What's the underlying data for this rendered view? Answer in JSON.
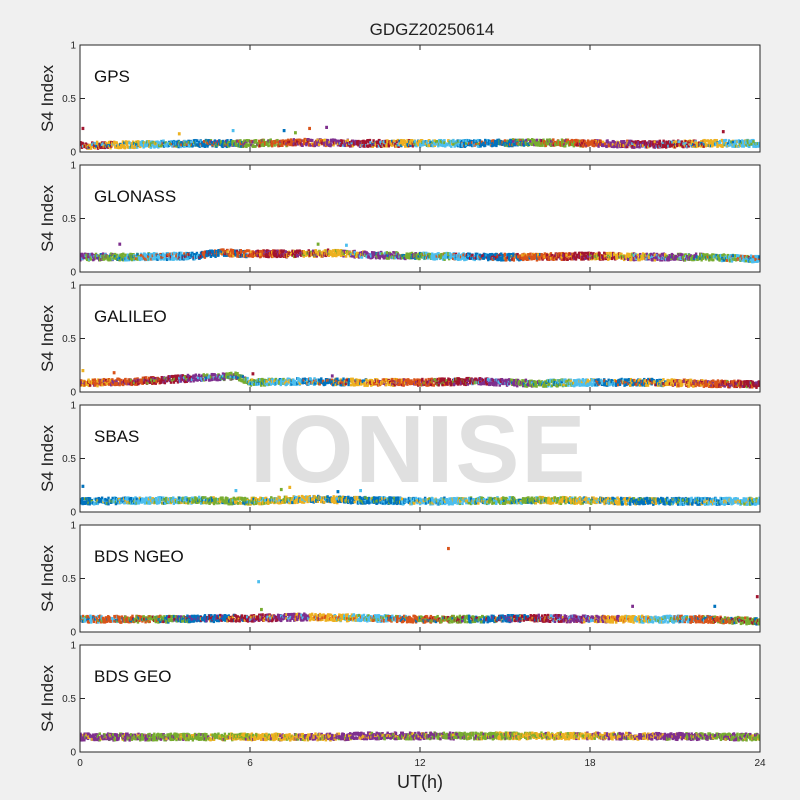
{
  "chart_data": {
    "type": "scatter",
    "title": "GDGZ20250614",
    "xlabel": "UT(h)",
    "ylabel": "S4 Index",
    "xlim": [
      0,
      24
    ],
    "ylim": [
      0,
      1
    ],
    "x_ticks": [
      "0",
      "6",
      "12",
      "18",
      "24"
    ],
    "y_ticks": [
      "0",
      "0.5",
      "1"
    ],
    "watermark": "IONISE",
    "grid": false,
    "palette": [
      "#0072BD",
      "#D95319",
      "#EDB120",
      "#7E2F8E",
      "#77AC30",
      "#4DBEEE",
      "#A2142F"
    ],
    "panels": [
      {
        "name": "GPS",
        "series_colors": [
          "#A2142F",
          "#EDB120",
          "#4DBEEE",
          "#0072BD",
          "#77AC30",
          "#D95319",
          "#7E2F8E"
        ],
        "s4_level": [
          [
            0,
            0.06
          ],
          [
            2,
            0.07
          ],
          [
            4,
            0.08
          ],
          [
            6,
            0.08
          ],
          [
            8,
            0.09
          ],
          [
            10,
            0.08
          ],
          [
            12,
            0.08
          ],
          [
            14,
            0.08
          ],
          [
            16,
            0.09
          ],
          [
            18,
            0.08
          ],
          [
            20,
            0.07
          ],
          [
            22,
            0.08
          ],
          [
            24,
            0.08
          ]
        ],
        "outliers": [
          [
            0.1,
            0.22
          ],
          [
            3.5,
            0.17
          ],
          [
            5.4,
            0.2
          ],
          [
            7.2,
            0.2
          ],
          [
            7.6,
            0.18
          ],
          [
            8.1,
            0.22
          ],
          [
            8.7,
            0.23
          ],
          [
            22.7,
            0.19
          ]
        ]
      },
      {
        "name": "GLONASS",
        "series_colors": [
          "#7E2F8E",
          "#77AC30",
          "#4DBEEE",
          "#0072BD",
          "#D95319",
          "#A2142F",
          "#EDB120"
        ],
        "s4_level": [
          [
            0,
            0.14
          ],
          [
            2,
            0.14
          ],
          [
            4,
            0.15
          ],
          [
            5,
            0.18
          ],
          [
            6,
            0.17
          ],
          [
            8,
            0.17
          ],
          [
            9,
            0.18
          ],
          [
            10,
            0.16
          ],
          [
            12,
            0.15
          ],
          [
            14,
            0.14
          ],
          [
            16,
            0.14
          ],
          [
            18,
            0.15
          ],
          [
            20,
            0.14
          ],
          [
            22,
            0.14
          ],
          [
            24,
            0.12
          ]
        ],
        "outliers": [
          [
            1.4,
            0.26
          ],
          [
            8.4,
            0.26
          ],
          [
            9.4,
            0.25
          ]
        ]
      },
      {
        "name": "GALILEO",
        "series_colors": [
          "#EDB120",
          "#D95319",
          "#A2142F",
          "#7E2F8E",
          "#77AC30",
          "#4DBEEE",
          "#0072BD"
        ],
        "s4_level": [
          [
            0,
            0.08
          ],
          [
            2,
            0.1
          ],
          [
            4,
            0.13
          ],
          [
            5.5,
            0.15
          ],
          [
            6,
            0.09
          ],
          [
            8,
            0.1
          ],
          [
            10,
            0.09
          ],
          [
            12,
            0.09
          ],
          [
            14,
            0.1
          ],
          [
            16,
            0.08
          ],
          [
            18,
            0.09
          ],
          [
            20,
            0.09
          ],
          [
            22,
            0.08
          ],
          [
            24,
            0.07
          ]
        ],
        "outliers": [
          [
            0.1,
            0.2
          ],
          [
            1.2,
            0.18
          ],
          [
            6.1,
            0.17
          ],
          [
            8.9,
            0.15
          ]
        ]
      },
      {
        "name": "SBAS",
        "series_colors": [
          "#0072BD",
          "#4DBEEE",
          "#77AC30",
          "#EDB120"
        ],
        "s4_level": [
          [
            0,
            0.1
          ],
          [
            4,
            0.11
          ],
          [
            6,
            0.1
          ],
          [
            8,
            0.12
          ],
          [
            12,
            0.1
          ],
          [
            16,
            0.11
          ],
          [
            20,
            0.1
          ],
          [
            24,
            0.1
          ]
        ],
        "outliers": [
          [
            0.1,
            0.24
          ],
          [
            5.5,
            0.2
          ],
          [
            7.1,
            0.21
          ],
          [
            7.4,
            0.23
          ],
          [
            9.1,
            0.19
          ],
          [
            9.9,
            0.2
          ]
        ]
      },
      {
        "name": "BDS NGEO",
        "series_colors": [
          "#4DBEEE",
          "#D95319",
          "#77AC30",
          "#0072BD",
          "#A2142F",
          "#7E2F8E",
          "#EDB120"
        ],
        "s4_level": [
          [
            0,
            0.12
          ],
          [
            3,
            0.12
          ],
          [
            6,
            0.13
          ],
          [
            8,
            0.14
          ],
          [
            10,
            0.13
          ],
          [
            12,
            0.12
          ],
          [
            14,
            0.12
          ],
          [
            16,
            0.13
          ],
          [
            18,
            0.12
          ],
          [
            20,
            0.12
          ],
          [
            22,
            0.12
          ],
          [
            24,
            0.1
          ]
        ],
        "outliers": [
          [
            6.3,
            0.47
          ],
          [
            13.0,
            0.78
          ],
          [
            6.4,
            0.21
          ],
          [
            22.4,
            0.24
          ],
          [
            23.9,
            0.33
          ],
          [
            19.5,
            0.24
          ]
        ]
      },
      {
        "name": "BDS GEO",
        "series_colors": [
          "#7E2F8E",
          "#77AC30",
          "#EDB120"
        ],
        "s4_level": [
          [
            0,
            0.14
          ],
          [
            9,
            0.14
          ],
          [
            10,
            0.15
          ],
          [
            18,
            0.15
          ],
          [
            24,
            0.14
          ]
        ],
        "outliers": []
      }
    ]
  }
}
